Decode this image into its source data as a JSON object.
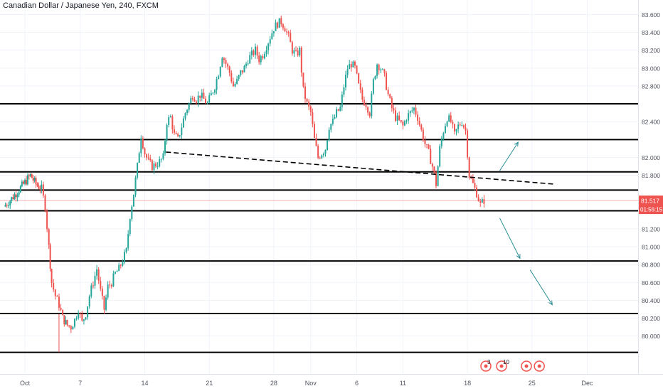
{
  "header": {
    "title": "Canadian Dollar / Japanese Yen, 240, FXCM"
  },
  "colors": {
    "up": "#26a69a",
    "down": "#ef5350",
    "level_line": "#000000",
    "trendline": "#000000",
    "arrow": "#2a8c94",
    "current_price": "#ef5350",
    "axis_text": "#50535e",
    "grid": "#f0f3fa"
  },
  "chart_data": {
    "type": "candlestick",
    "title": "Canadian Dollar / Japanese Yen, 240, FXCM",
    "ylim": [
      79.75,
      83.62
    ],
    "y_ticks": [
      "83.600",
      "83.400",
      "83.200",
      "83.000",
      "82.800",
      "82.400",
      "82.000",
      "81.800",
      "81.200",
      "81.000",
      "80.800",
      "80.600",
      "80.400",
      "80.200",
      "80.000"
    ],
    "x_ticks": [
      {
        "label": "Oct",
        "day": 0
      },
      {
        "label": "7",
        "day": 6
      },
      {
        "label": "14",
        "day": 13
      },
      {
        "label": "21",
        "day": 20
      },
      {
        "label": "28",
        "day": 27
      },
      {
        "label": "Nov",
        "day": 31
      },
      {
        "label": "6",
        "day": 36
      },
      {
        "label": "11",
        "day": 41
      },
      {
        "label": "18",
        "day": 48
      },
      {
        "label": "25",
        "day": 55
      },
      {
        "label": "Dec",
        "day": 61
      }
    ],
    "horizontal_levels": [
      {
        "value": 82.601,
        "label": "82.601"
      },
      {
        "value": 82.2,
        "label": "82.200"
      },
      {
        "value": 81.838,
        "label": "81.838"
      },
      {
        "value": 81.634,
        "label": "81.634"
      },
      {
        "value": 81.402,
        "label": "81.402"
      },
      {
        "value": 80.84,
        "label": "80.840"
      },
      {
        "value": 80.252,
        "label": "80.252"
      },
      {
        "value": 79.817,
        "label": "79.817"
      }
    ],
    "current_price": {
      "value": 81.517,
      "label": "81.517",
      "countdown": "01:56:15"
    },
    "trendline": {
      "start": {
        "day": 15.3,
        "price": 82.06
      },
      "end": {
        "day": 57.5,
        "price": 81.7
      },
      "style": "dashed"
    },
    "projection_arrows": [
      {
        "from": {
          "day": 51.5,
          "price": 81.85
        },
        "to": {
          "day": 53.5,
          "price": 82.17
        }
      },
      {
        "from": {
          "day": 51.5,
          "price": 81.32
        },
        "to": {
          "day": 53.7,
          "price": 80.87
        }
      },
      {
        "from": {
          "day": 54.8,
          "price": 80.74
        },
        "to": {
          "day": 57.2,
          "price": 80.35
        }
      }
    ],
    "event_markers": [
      {
        "day": 50.0,
        "label": "3"
      },
      {
        "day": 51.7,
        "label": "10"
      },
      {
        "day": 54.4,
        "label": ""
      },
      {
        "day": 55.8,
        "label": ""
      }
    ],
    "price_path": [
      [
        -2.3,
        81.45
      ],
      [
        -1.6,
        81.52
      ],
      [
        -0.8,
        81.62
      ],
      [
        0.0,
        81.72
      ],
      [
        0.6,
        81.8
      ],
      [
        1.2,
        81.7
      ],
      [
        1.8,
        81.65
      ],
      [
        2.2,
        81.45
      ],
      [
        2.6,
        81.0
      ],
      [
        2.9,
        80.6
      ],
      [
        3.3,
        80.45
      ],
      [
        3.7,
        80.35
      ],
      [
        4.1,
        80.2
      ],
      [
        4.6,
        80.12
      ],
      [
        5.0,
        80.1
      ],
      [
        5.4,
        80.18
      ],
      [
        5.8,
        80.3
      ],
      [
        6.2,
        80.15
      ],
      [
        6.6,
        80.25
      ],
      [
        7.0,
        80.45
      ],
      [
        7.4,
        80.6
      ],
      [
        7.8,
        80.75
      ],
      [
        8.2,
        80.5
      ],
      [
        8.6,
        80.3
      ],
      [
        9.0,
        80.55
      ],
      [
        9.4,
        80.6
      ],
      [
        9.8,
        80.7
      ],
      [
        10.2,
        80.75
      ],
      [
        10.6,
        80.85
      ],
      [
        11.0,
        80.95
      ],
      [
        11.4,
        81.35
      ],
      [
        11.8,
        81.6
      ],
      [
        12.2,
        81.9
      ],
      [
        12.6,
        82.25
      ],
      [
        13.0,
        82.05
      ],
      [
        13.4,
        81.95
      ],
      [
        13.8,
        81.9
      ],
      [
        14.2,
        81.92
      ],
      [
        14.6,
        81.95
      ],
      [
        15.0,
        82.0
      ],
      [
        15.4,
        82.4
      ],
      [
        15.8,
        82.45
      ],
      [
        16.2,
        82.25
      ],
      [
        16.6,
        82.2
      ],
      [
        17.0,
        82.35
      ],
      [
        17.4,
        82.5
      ],
      [
        17.8,
        82.6
      ],
      [
        18.2,
        82.7
      ],
      [
        18.6,
        82.65
      ],
      [
        19.0,
        82.7
      ],
      [
        19.4,
        82.65
      ],
      [
        19.8,
        82.6
      ],
      [
        20.2,
        82.7
      ],
      [
        20.6,
        82.8
      ],
      [
        21.0,
        82.95
      ],
      [
        21.4,
        83.15
      ],
      [
        21.8,
        83.05
      ],
      [
        22.2,
        82.95
      ],
      [
        22.6,
        82.8
      ],
      [
        23.0,
        82.85
      ],
      [
        23.4,
        82.95
      ],
      [
        23.8,
        83.0
      ],
      [
        24.2,
        83.1
      ],
      [
        24.6,
        83.15
      ],
      [
        25.0,
        83.2
      ],
      [
        25.4,
        83.1
      ],
      [
        25.8,
        83.15
      ],
      [
        26.2,
        83.25
      ],
      [
        26.6,
        83.35
      ],
      [
        27.0,
        83.45
      ],
      [
        27.4,
        83.5
      ],
      [
        27.8,
        83.52
      ],
      [
        28.2,
        83.45
      ],
      [
        28.6,
        83.35
      ],
      [
        29.0,
        83.2
      ],
      [
        29.4,
        83.15
      ],
      [
        29.8,
        83.2
      ],
      [
        30.2,
        82.75
      ],
      [
        30.6,
        82.6
      ],
      [
        31.0,
        82.5
      ],
      [
        31.4,
        82.2
      ],
      [
        31.8,
        82.0
      ],
      [
        32.2,
        82.05
      ],
      [
        32.6,
        82.1
      ],
      [
        33.0,
        82.35
      ],
      [
        33.4,
        82.4
      ],
      [
        33.8,
        82.5
      ],
      [
        34.2,
        82.55
      ],
      [
        34.6,
        82.8
      ],
      [
        35.0,
        83.0
      ],
      [
        35.4,
        83.05
      ],
      [
        35.8,
        83.0
      ],
      [
        36.2,
        82.8
      ],
      [
        36.6,
        82.65
      ],
      [
        37.0,
        82.6
      ],
      [
        37.4,
        82.5
      ],
      [
        37.8,
        82.85
      ],
      [
        38.2,
        83.05
      ],
      [
        38.6,
        83.0
      ],
      [
        39.0,
        82.9
      ],
      [
        39.4,
        82.7
      ],
      [
        39.8,
        82.55
      ],
      [
        40.2,
        82.45
      ],
      [
        40.6,
        82.4
      ],
      [
        41.0,
        82.35
      ],
      [
        41.4,
        82.45
      ],
      [
        41.8,
        82.5
      ],
      [
        42.2,
        82.55
      ],
      [
        42.6,
        82.45
      ],
      [
        43.0,
        82.3
      ],
      [
        43.4,
        82.15
      ],
      [
        43.8,
        82.05
      ],
      [
        44.2,
        81.9
      ],
      [
        44.6,
        81.7
      ],
      [
        45.0,
        82.1
      ],
      [
        45.4,
        82.3
      ],
      [
        45.8,
        82.45
      ],
      [
        46.2,
        82.4
      ],
      [
        46.6,
        82.25
      ],
      [
        47.0,
        82.35
      ],
      [
        47.4,
        82.4
      ],
      [
        47.8,
        82.3
      ],
      [
        48.2,
        81.8
      ],
      [
        48.6,
        81.7
      ],
      [
        49.0,
        81.6
      ],
      [
        49.4,
        81.47
      ],
      [
        49.8,
        81.52
      ]
    ]
  }
}
